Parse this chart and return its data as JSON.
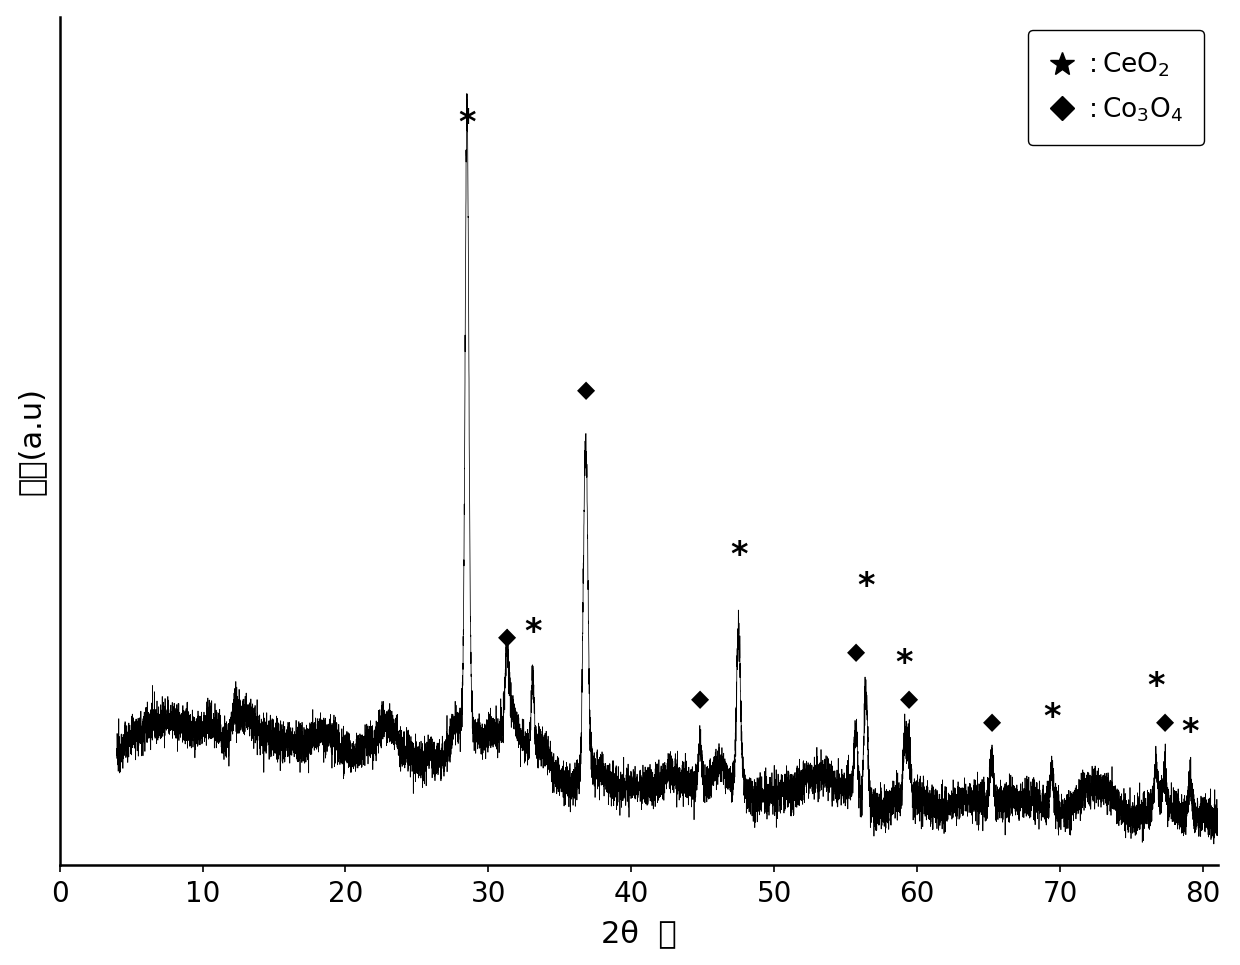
{
  "x_min": 5,
  "x_max": 80,
  "y_label": "强度(a.u)",
  "x_label": "2θ  度",
  "background_color": "#ffffff",
  "line_color": "#000000",
  "ceo2_peaks": [
    28.5,
    33.1,
    47.5,
    56.4,
    59.1,
    69.4,
    76.7,
    79.1
  ],
  "ceo2_heights": [
    0.88,
    0.1,
    0.22,
    0.16,
    0.09,
    0.055,
    0.065,
    0.05
  ],
  "ceo2_widths": [
    0.13,
    0.11,
    0.14,
    0.13,
    0.11,
    0.11,
    0.11,
    0.11
  ],
  "co3o4_peaks": [
    31.3,
    36.8,
    44.8,
    55.7,
    59.4,
    65.2,
    77.3
  ],
  "co3o4_heights": [
    0.11,
    0.48,
    0.07,
    0.1,
    0.09,
    0.06,
    0.055
  ],
  "co3o4_widths": [
    0.13,
    0.16,
    0.13,
    0.13,
    0.13,
    0.13,
    0.13
  ],
  "ceo2_anno_x": [
    28.5,
    33.1,
    47.5,
    56.4,
    59.1,
    69.4,
    76.7,
    79.1
  ],
  "ceo2_anno_y": [
    0.94,
    0.28,
    0.38,
    0.34,
    0.24,
    0.17,
    0.21,
    0.15
  ],
  "co3o4_anno_x": [
    31.3,
    36.8,
    44.8,
    55.7,
    59.4,
    65.2,
    77.3
  ],
  "co3o4_anno_y": [
    0.28,
    0.6,
    0.2,
    0.26,
    0.2,
    0.17,
    0.17
  ],
  "xticks": [
    0,
    10,
    20,
    30,
    40,
    50,
    60,
    70,
    80
  ],
  "xlim": [
    4,
    81
  ],
  "ylim": [
    0,
    1.1
  ]
}
